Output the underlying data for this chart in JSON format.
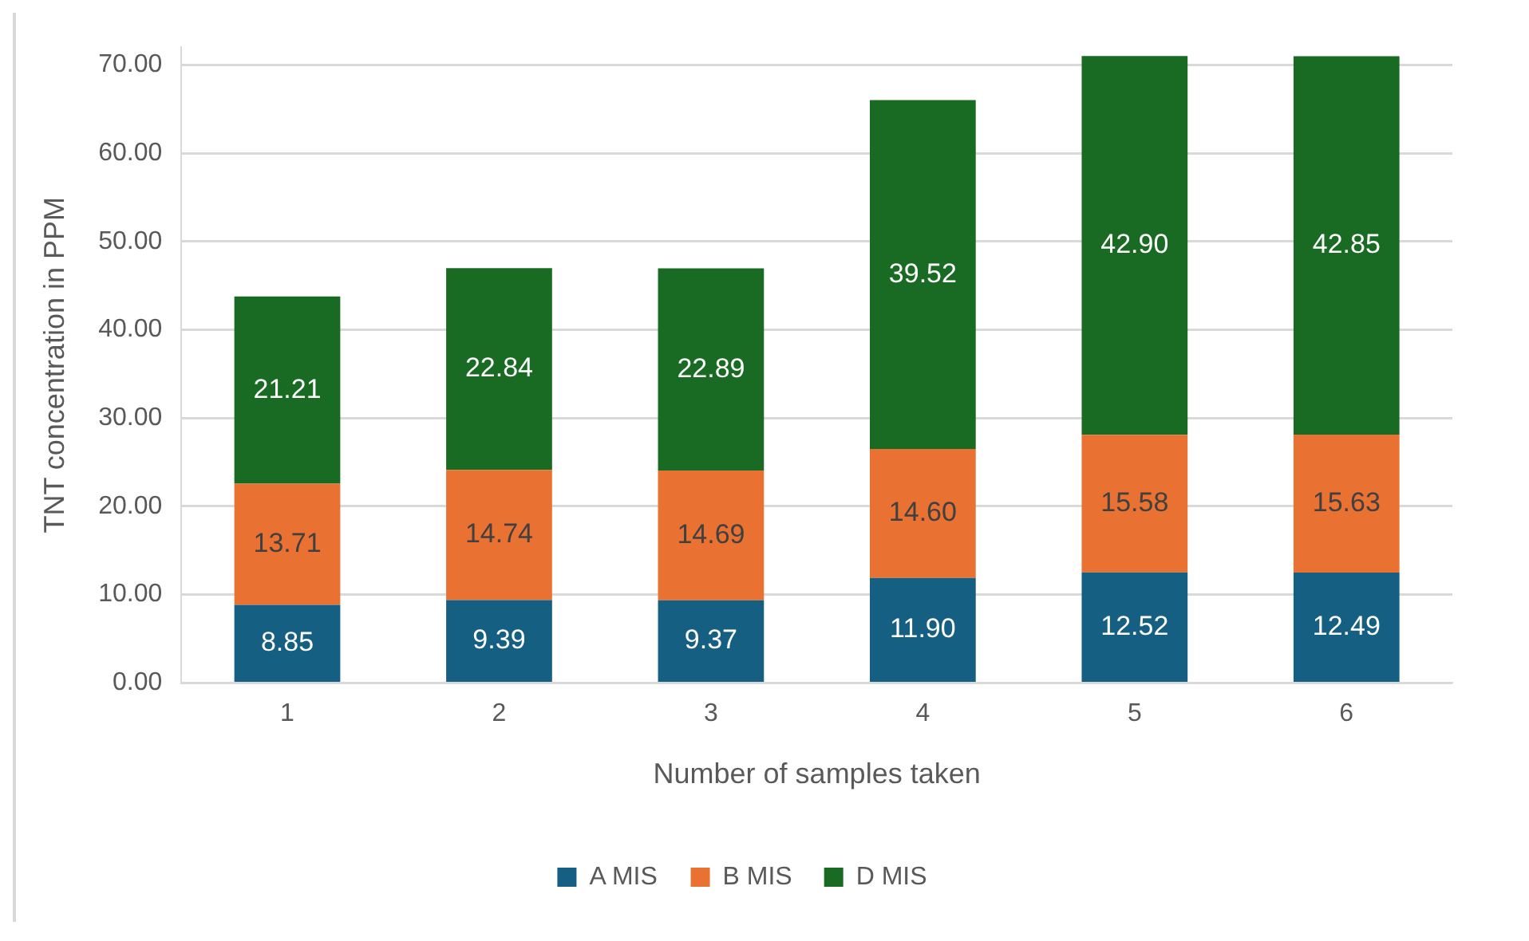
{
  "chart_data": {
    "type": "bar",
    "stacked": true,
    "xlabel": "Number of samples taken",
    "ylabel": "TNT concentration in PPM",
    "categories": [
      "1",
      "2",
      "3",
      "4",
      "5",
      "6"
    ],
    "series": [
      {
        "name": "A MIS",
        "color": "#155f82",
        "values": [
          8.85,
          9.39,
          9.37,
          11.9,
          12.52,
          12.49
        ],
        "value_labels": [
          "8.85",
          "9.39",
          "9.37",
          "11.90",
          "12.52",
          "12.49"
        ]
      },
      {
        "name": "B MIS",
        "color": "#e97132",
        "values": [
          13.71,
          14.74,
          14.69,
          14.6,
          15.58,
          15.63
        ],
        "value_labels": [
          "13.71",
          "14.74",
          "14.69",
          "14.60",
          "15.58",
          "15.63"
        ]
      },
      {
        "name": "D MIS",
        "color": "#196b24",
        "values": [
          21.21,
          22.84,
          22.89,
          39.52,
          42.9,
          42.85
        ],
        "value_labels": [
          "21.21",
          "22.84",
          "22.89",
          "39.52",
          "42.90",
          "42.85"
        ]
      }
    ],
    "ylim": [
      0,
      72
    ],
    "yticks": [
      {
        "value": 0,
        "label": "0.00"
      },
      {
        "value": 10,
        "label": "10.00"
      },
      {
        "value": 20,
        "label": "20.00"
      },
      {
        "value": 30,
        "label": "30.00"
      },
      {
        "value": 40,
        "label": "40.00"
      },
      {
        "value": 50,
        "label": "50.00"
      },
      {
        "value": 60,
        "label": "60.00"
      },
      {
        "value": 70,
        "label": "70.00"
      }
    ],
    "grid": "y",
    "legend": "bottom"
  }
}
